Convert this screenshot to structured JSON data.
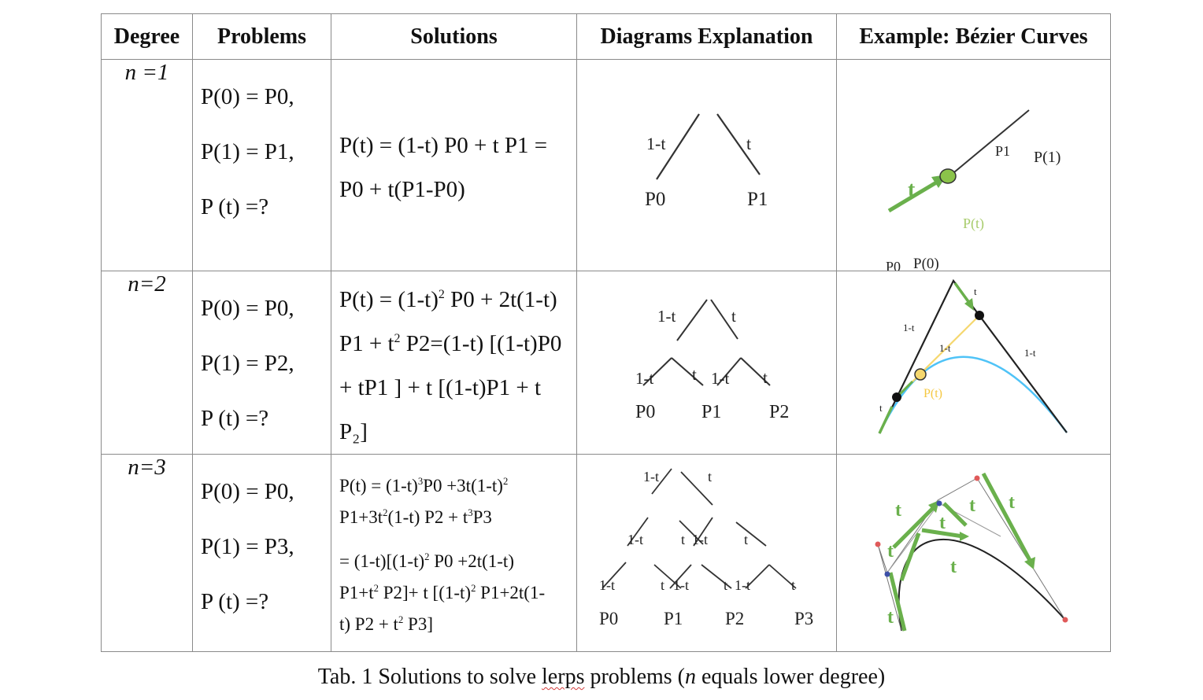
{
  "table": {
    "headers": [
      "Degree",
      "Problems",
      "Solutions",
      "Diagrams Explanation",
      "Example: Bézier Curves"
    ],
    "rows": [
      {
        "degree": "n =1",
        "problems": [
          "P(0) = P0,",
          "P(1) = P1,",
          "P (t) =?"
        ],
        "solution_lines": [
          "P(t) = (1-t) P0 + t P1 =",
          "P0 + t(P1-P0)"
        ],
        "diagram": {
          "labels": [
            "1-t",
            "t"
          ],
          "points": [
            "P0",
            "P1"
          ]
        },
        "example": {
          "labels": [
            "P1",
            "P(1)",
            "t",
            "P(t)",
            "P0",
            "P(0)"
          ]
        }
      },
      {
        "degree": "n=2",
        "problems": [
          "P(0) = P0,",
          "P(1) = P2,",
          "P (t) =?"
        ],
        "solution_lines": [
          "P(t) = (1-t)² P0 + 2t(1-t)",
          "P1 + t² P2=(1-t) [(1-t)P0",
          "+ tP1 ] + t [(1-t)P1 + t",
          "P₂]"
        ],
        "diagram": {
          "top": [
            "1-t",
            "t"
          ],
          "bottom": [
            "1-t",
            "t",
            "1-t",
            "t"
          ],
          "points": [
            "P0",
            "P1",
            "P2"
          ]
        },
        "example": {
          "labels": [
            "t",
            "1-t",
            "1-t",
            "1-t",
            "t",
            "P(t)"
          ]
        }
      },
      {
        "degree": "n=3",
        "problems": [
          "P(0) = P0,",
          "P(1) = P3,",
          "P (t) =?"
        ],
        "solution_lines": [
          "P(t) = (1-t)³P0 +3t(1-t)²",
          "P1+3t²(1-t) P2 + t³P3",
          "= (1-t)[(1-t)² P0 +2t(1-t)",
          "P1+t² P2]+ t [(1-t)² P1+2t(1-",
          "t) P2 + t² P3]"
        ],
        "diagram": {
          "row1": [
            "1-t",
            "t"
          ],
          "row2": [
            "1-t",
            "t",
            "1-t",
            "t"
          ],
          "row3": [
            "1-t",
            "t",
            "1-t",
            "t",
            "1-t",
            "t"
          ],
          "points": [
            "P0",
            "P1",
            "P2",
            "P3"
          ]
        },
        "example": {
          "labels": [
            "t",
            "t",
            "t",
            "t",
            "t",
            "t",
            "t"
          ]
        }
      }
    ]
  },
  "caption": {
    "prefix": "Tab. 1 Solutions to solve ",
    "flagged_word": "lerps",
    "middle": " problems (",
    "italic": "n",
    "suffix": " equals lower degree)"
  },
  "colors": {
    "border": "#8a8a8a",
    "arrow_green": "#6ab04c",
    "point_green": "#8bc34a",
    "label_light_green": "#a8cc6c",
    "curve_blue": "#4fc3f7",
    "segment_yellow": "#f5d76e",
    "control_red": "#e05a5a",
    "control_blue": "#3c4fa8",
    "spell_underline": "#d23b3b"
  }
}
